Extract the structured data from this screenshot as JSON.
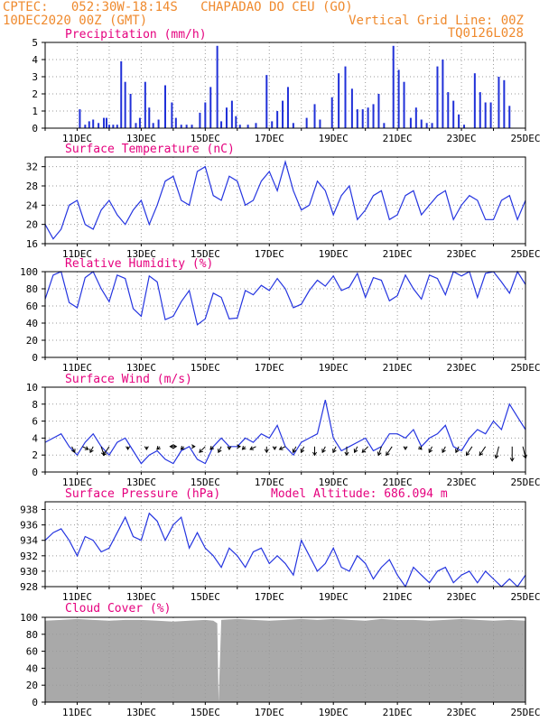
{
  "header": {
    "line1": "CPTEC:   052:30W-18:14S   CHAPADAO DO CEU (GO)",
    "line2_left": "10DEC2020 00Z (GMT)",
    "line2_right": "Vertical Grid Line: 00Z",
    "line3_right": "TQ0126L028"
  },
  "colors": {
    "header": "#ef8a2e",
    "panel_title": "#e5007e",
    "line": "#2535e0",
    "arrow": "#000000",
    "cloud": "#a9a9a9",
    "bars": "#2030d8"
  },
  "x_axis": {
    "start": "10DEC2020 00Z",
    "end": "25DEC2020 00Z",
    "tick_labels": [
      "11DEC",
      "13DEC",
      "15DEC",
      "17DEC",
      "19DEC",
      "21DEC",
      "23DEC",
      "25DEC"
    ]
  },
  "chart_data": [
    {
      "type": "bar",
      "title": "Precipitation (mm/h)",
      "ylim": [
        0,
        5
      ],
      "yticks": [
        "0",
        "1",
        "2",
        "3",
        "4",
        "5"
      ],
      "grid": true,
      "x": [
        "11DEC",
        "11DEC",
        "11DEC",
        "11DEC",
        "11DEC",
        "11DEC",
        "12DEC",
        "12DEC",
        "12DEC",
        "12DEC",
        "12DEC",
        "12DEC",
        "13DEC",
        "13DEC",
        "13DEC",
        "13DEC",
        "13DEC",
        "13DEC",
        "13DEC",
        "13DEC",
        "14DEC",
        "14DEC",
        "14DEC",
        "14DEC",
        "15DEC",
        "15DEC",
        "15DEC",
        "15DEC",
        "15DEC",
        "15DEC",
        "16DEC",
        "16DEC",
        "16DEC",
        "16DEC",
        "17DEC",
        "17DEC",
        "18DEC",
        "18DEC",
        "18DEC",
        "18DEC",
        "18DEC",
        "18DEC",
        "19DEC",
        "19DEC",
        "19DEC",
        "20DEC",
        "20DEC",
        "20DEC",
        "20DEC",
        "20DEC",
        "20DEC",
        "20DEC",
        "21DEC",
        "21DEC",
        "21DEC",
        "22DEC",
        "22DEC",
        "22DEC",
        "22DEC",
        "22DEC",
        "22DEC",
        "22DEC",
        "22DEC",
        "23DEC",
        "23DEC",
        "23DEC",
        "23DEC",
        "23DEC",
        "23DEC",
        "24DEC",
        "24DEC",
        "24DEC",
        "24DEC",
        "24DEC",
        "24DEC",
        "24DEC"
      ],
      "values": [
        1.1,
        0.2,
        0.4,
        0.5,
        0.3,
        0.6,
        0.6,
        0.2,
        0.2,
        0.2,
        3.9,
        2.7,
        2.0,
        0.3,
        0.6,
        2.7,
        1.2,
        0.3,
        0.5,
        2.5,
        1.5,
        0.6,
        0.2,
        0.2,
        0.2,
        0.9,
        1.5,
        2.4,
        4.8,
        0.4,
        1.2,
        1.6,
        0.7,
        0.2,
        0.2,
        0.3,
        3.1,
        0.4,
        1.0,
        1.6,
        2.4,
        0.3,
        0.6,
        1.4,
        0.5,
        1.8,
        3.2,
        3.6,
        2.3,
        1.1,
        1.1,
        1.2,
        1.4,
        2.0,
        0.3,
        4.8,
        3.4,
        2.7,
        0.6,
        1.2,
        0.5,
        0.3,
        0.3,
        3.6,
        4.0,
        2.1,
        1.6,
        0.8,
        0.2,
        3.2,
        2.1,
        1.5,
        1.5,
        3.0,
        2.8,
        1.3
      ],
      "x_hours": [
        26,
        30,
        33,
        36,
        40,
        44,
        46,
        48,
        51,
        54,
        57,
        60,
        64,
        68,
        71,
        75,
        78,
        81,
        85,
        90,
        95,
        98,
        102,
        106,
        110,
        116,
        120,
        124,
        129,
        132,
        136,
        140,
        143,
        146,
        152,
        158,
        166,
        170,
        174,
        178,
        182,
        186,
        196,
        202,
        206,
        215,
        220,
        225,
        230,
        234,
        238,
        242,
        246,
        250,
        254,
        261,
        265,
        269,
        274,
        278,
        282,
        286,
        290,
        294,
        298,
        302,
        306,
        310,
        314,
        322,
        326,
        330,
        334,
        340,
        344,
        348
      ]
    },
    {
      "type": "line",
      "title": "Surface Temperature (nC)",
      "ylim": [
        16,
        34
      ],
      "yticks": [
        "16",
        "20",
        "24",
        "28",
        "32"
      ],
      "grid": true,
      "x_hours": [
        0,
        6,
        12,
        18,
        24,
        30,
        36,
        42,
        48,
        54,
        60,
        66,
        72,
        78,
        84,
        90,
        96,
        102,
        108,
        114,
        120,
        126,
        132,
        138,
        144,
        150,
        156,
        162,
        168,
        174,
        180,
        186,
        192,
        198,
        204,
        210,
        216,
        222,
        228,
        234,
        240,
        246,
        252,
        258,
        264,
        270,
        276,
        282,
        288,
        294,
        300,
        306,
        312,
        318,
        324,
        330,
        336,
        342,
        348,
        354,
        360
      ],
      "y": [
        20,
        17,
        19,
        24,
        25,
        20,
        19,
        23,
        25,
        22,
        20,
        23,
        25,
        20,
        24,
        29,
        30,
        25,
        24,
        31,
        32,
        26,
        25,
        30,
        29,
        24,
        25,
        29,
        31,
        27,
        33,
        27,
        23,
        24,
        29,
        27,
        22,
        26,
        28,
        21,
        23,
        26,
        27,
        21,
        22,
        26,
        27,
        22,
        24,
        26,
        27,
        21,
        24,
        26,
        25,
        21,
        21,
        25,
        26,
        21,
        25
      ]
    },
    {
      "type": "line",
      "title": "Relative Humidity (%)",
      "ylim": [
        0,
        100
      ],
      "yticks": [
        "0",
        "20",
        "40",
        "60",
        "80",
        "100"
      ],
      "grid": true,
      "x_hours": [
        0,
        6,
        12,
        18,
        24,
        30,
        36,
        42,
        48,
        54,
        60,
        66,
        72,
        78,
        84,
        90,
        96,
        102,
        108,
        114,
        120,
        126,
        132,
        138,
        144,
        150,
        156,
        162,
        168,
        174,
        180,
        186,
        192,
        198,
        204,
        210,
        216,
        222,
        228,
        234,
        240,
        246,
        252,
        258,
        264,
        270,
        276,
        282,
        288,
        294,
        300,
        306,
        312,
        318,
        324,
        330,
        336,
        342,
        348,
        354,
        360
      ],
      "y": [
        68,
        96,
        100,
        64,
        58,
        93,
        100,
        80,
        65,
        96,
        92,
        57,
        48,
        95,
        88,
        44,
        48,
        65,
        78,
        38,
        45,
        75,
        70,
        45,
        46,
        78,
        73,
        84,
        78,
        92,
        80,
        58,
        62,
        78,
        90,
        83,
        95,
        78,
        82,
        98,
        70,
        93,
        90,
        66,
        72,
        96,
        80,
        68,
        96,
        92,
        73,
        100,
        95,
        100,
        70,
        98,
        100,
        88,
        75,
        100,
        85
      ]
    },
    {
      "type": "line",
      "title": "Surface Wind (m/s)",
      "ylim": [
        0,
        10
      ],
      "yticks": [
        "0",
        "2",
        "4",
        "6",
        "8",
        "10"
      ],
      "grid": true,
      "x_hours": [
        0,
        6,
        12,
        18,
        24,
        30,
        36,
        42,
        48,
        54,
        60,
        66,
        72,
        78,
        84,
        90,
        96,
        102,
        108,
        114,
        120,
        126,
        132,
        138,
        144,
        150,
        156,
        162,
        168,
        174,
        180,
        186,
        192,
        198,
        204,
        210,
        216,
        222,
        228,
        234,
        240,
        246,
        252,
        258,
        264,
        270,
        276,
        282,
        288,
        294,
        300,
        306,
        312,
        318,
        324,
        330,
        336,
        342,
        348,
        354,
        360
      ],
      "y": [
        3.5,
        4,
        4.5,
        3,
        2,
        3.5,
        4.5,
        3,
        2,
        3.5,
        4,
        2.5,
        1,
        2,
        2.5,
        1.5,
        1,
        2.5,
        3,
        1.5,
        1,
        3,
        4,
        3,
        3,
        4,
        3.5,
        4.5,
        4,
        5.5,
        3,
        2,
        3.5,
        4,
        4.5,
        8.5,
        4,
        2.5,
        3,
        3.5,
        4,
        2.5,
        3,
        4.5,
        4.5,
        4,
        5,
        3,
        4,
        4.5,
        5.5,
        3,
        2.5,
        4,
        5,
        4.5,
        6,
        5,
        8,
        6.5,
        5
      ],
      "wind_arrows": {
        "x_hours": [
          20,
          28,
          36,
          42,
          48,
          62,
          76,
          86,
          94,
          98,
          104,
          110,
          120,
          126,
          132,
          138,
          144,
          150,
          158,
          166,
          172,
          180,
          188,
          194,
          202,
          210,
          218,
          226,
          234,
          242,
          252,
          260,
          270,
          280,
          290,
          300,
          310,
          320,
          330,
          340,
          350,
          358
        ],
        "u": [
          1,
          2,
          -1,
          1,
          -2,
          0,
          0,
          -1,
          2,
          -2,
          -1,
          1,
          -2,
          -1,
          -1,
          0,
          1,
          -1,
          -2,
          0,
          0,
          -2,
          -1,
          -1,
          0,
          -1,
          -1,
          0,
          -1,
          -2,
          -1,
          -2,
          0,
          1,
          -1,
          -1,
          -1,
          -2,
          -2,
          -1,
          0,
          1
        ],
        "v": [
          -2,
          -1,
          -2,
          -3,
          -3,
          -1,
          -1,
          -1,
          0,
          0,
          -1,
          0,
          -2,
          -1,
          -2,
          -1,
          0,
          -1,
          -1,
          -2,
          -1,
          -1,
          -2,
          -2,
          -3,
          -2,
          -2,
          -3,
          -2,
          -2,
          -3,
          -3,
          -1,
          -1,
          -2,
          -2,
          -2,
          -3,
          -3,
          -4,
          -5,
          -4
        ]
      }
    },
    {
      "type": "line",
      "title": "Surface Pressure (hPa)",
      "annotation": "Model Altitude: 686.094 m",
      "ylim": [
        928,
        939
      ],
      "yticks": [
        "928",
        "930",
        "932",
        "934",
        "936",
        "938"
      ],
      "grid": true,
      "x_hours": [
        0,
        6,
        12,
        18,
        24,
        30,
        36,
        42,
        48,
        54,
        60,
        66,
        72,
        78,
        84,
        90,
        96,
        102,
        108,
        114,
        120,
        126,
        132,
        138,
        144,
        150,
        156,
        162,
        168,
        174,
        180,
        186,
        192,
        198,
        204,
        210,
        216,
        222,
        228,
        234,
        240,
        246,
        252,
        258,
        264,
        270,
        276,
        282,
        288,
        294,
        300,
        306,
        312,
        318,
        324,
        330,
        336,
        342,
        348,
        354,
        360
      ],
      "y": [
        934,
        935,
        935.5,
        934,
        932,
        934.5,
        934,
        932.5,
        933,
        935,
        937,
        934.5,
        934,
        937.5,
        936.5,
        934,
        936,
        937,
        933,
        935,
        933,
        932,
        930.5,
        933,
        932,
        930.5,
        932.5,
        933,
        931,
        932,
        931,
        929.5,
        934,
        932,
        930,
        931,
        933,
        930.5,
        930,
        932,
        931,
        929,
        930.5,
        931.5,
        929.5,
        928,
        930.5,
        929.5,
        928.5,
        930,
        930.5,
        928.5,
        929.5,
        930,
        928.5,
        930,
        929,
        928,
        929,
        928,
        929.5
      ]
    },
    {
      "type": "area",
      "title": "Cloud Cover (%)",
      "ylim": [
        0,
        100
      ],
      "yticks": [
        "0",
        "20",
        "40",
        "60",
        "80",
        "100"
      ],
      "grid": true,
      "x_hours": [
        0,
        12,
        24,
        36,
        48,
        60,
        72,
        84,
        96,
        108,
        120,
        126,
        129,
        130,
        132,
        144,
        156,
        168,
        180,
        192,
        204,
        216,
        228,
        240,
        252,
        264,
        276,
        288,
        300,
        312,
        324,
        336,
        348,
        360
      ],
      "y": [
        96,
        97,
        98,
        97,
        96,
        97,
        97,
        96,
        95,
        96,
        97,
        96,
        93,
        0,
        97,
        98,
        97,
        96,
        97,
        98,
        97,
        98,
        97,
        96,
        98,
        97,
        97,
        96,
        97,
        98,
        97,
        96,
        97,
        96
      ]
    }
  ]
}
